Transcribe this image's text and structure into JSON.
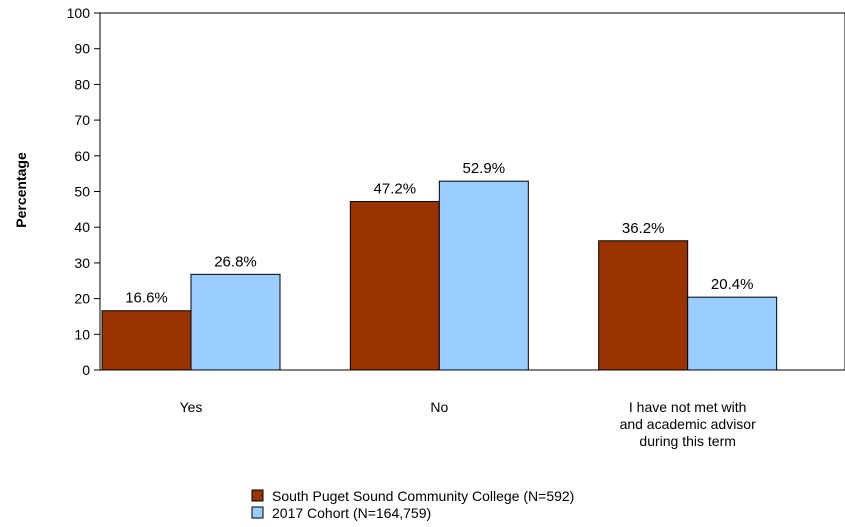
{
  "chart_data": {
    "type": "bar",
    "title": "",
    "xlabel": "",
    "ylabel": "Percentage",
    "ylim": [
      0,
      100
    ],
    "yticks": [
      0,
      10,
      20,
      30,
      40,
      50,
      60,
      70,
      80,
      90,
      100
    ],
    "categories": [
      [
        "Yes"
      ],
      [
        "No"
      ],
      [
        "I have not met with",
        "and academic advisor",
        "during this term"
      ]
    ],
    "series": [
      {
        "name": "South Puget Sound Community College (N=592)",
        "color": "#993300",
        "values": [
          16.6,
          47.2,
          36.2
        ],
        "labels": [
          "16.6%",
          "47.2%",
          "36.2%"
        ]
      },
      {
        "name": "2017 Cohort (N=164,759)",
        "color": "#99ccff",
        "values": [
          26.8,
          52.9,
          20.4
        ],
        "labels": [
          "26.8%",
          "52.9%",
          "20.4%"
        ]
      }
    ],
    "grid": false,
    "legend_position": "bottom-center"
  }
}
